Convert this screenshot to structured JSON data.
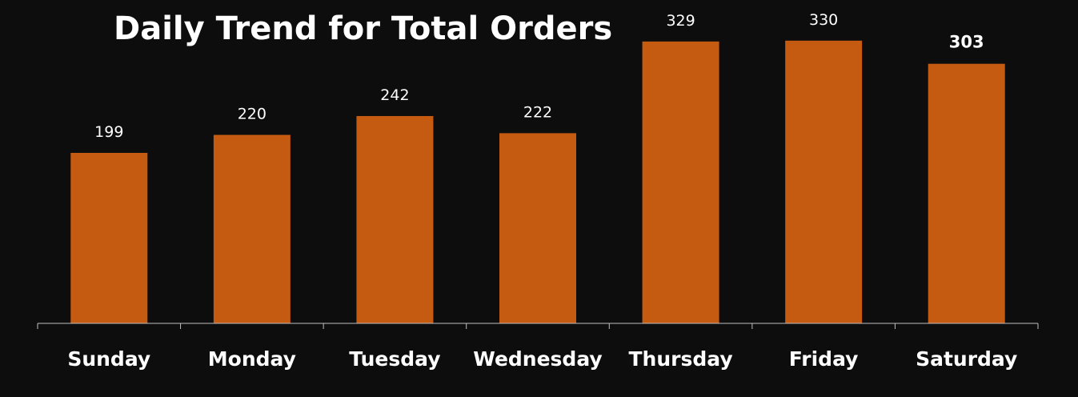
{
  "chart_data": {
    "type": "bar",
    "title": "Daily Trend for Total Orders",
    "categories": [
      "Sunday",
      "Monday",
      "Tuesday",
      "Wednesday",
      "Thursday",
      "Friday",
      "Saturday"
    ],
    "values": [
      199,
      220,
      242,
      222,
      329,
      330,
      303
    ],
    "data_labels": [
      "199",
      "220",
      "242",
      "222",
      "329",
      "330",
      "303"
    ],
    "xlabel": "",
    "ylabel": "",
    "ylim": [
      0,
      360
    ],
    "grid": false,
    "legend": "none",
    "colors": {
      "background": "#0d0d0d",
      "bar": "#c55a11",
      "text": "#ffffff",
      "axis": "#bfbfbf"
    }
  }
}
